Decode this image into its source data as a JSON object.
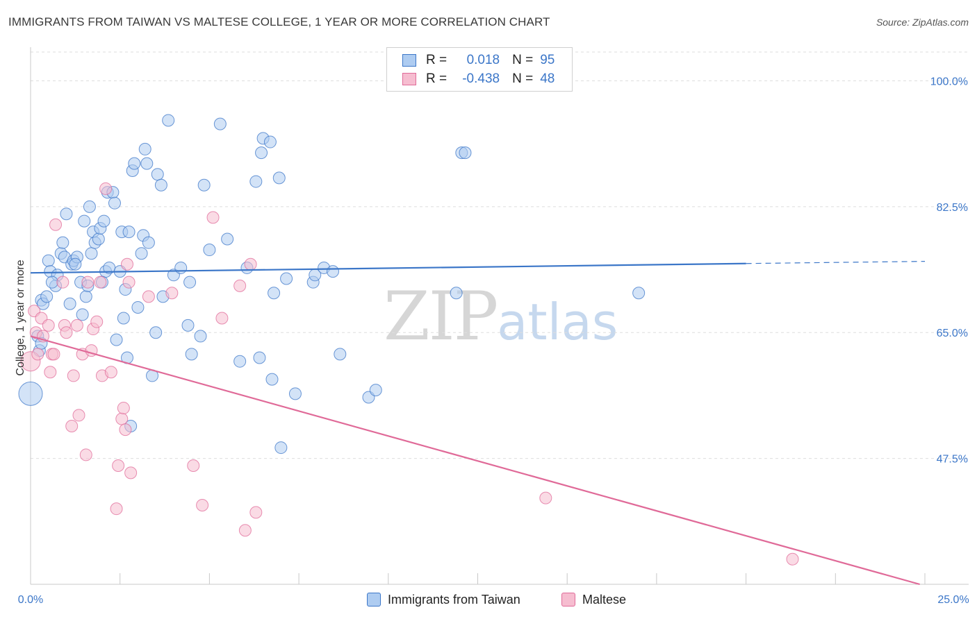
{
  "title": "IMMIGRANTS FROM TAIWAN VS MALTESE COLLEGE, 1 YEAR OR MORE CORRELATION CHART",
  "source": "Source: ZipAtlas.com",
  "watermark": {
    "zip": "ZIP",
    "atlas": "atlas"
  },
  "legend": {
    "series1": {
      "r_label": "R =",
      "r_value": "0.018",
      "n_label": "N =",
      "n_value": "95"
    },
    "series2": {
      "r_label": "R =",
      "r_value": "-0.438",
      "n_label": "N =",
      "n_value": "48"
    }
  },
  "colors": {
    "blue": "#3b76c8",
    "blue_fill": "#aeccf1",
    "pink": "#e06a98",
    "pink_fill": "#f6bdd0",
    "grid": "#dddddd"
  },
  "chart_data": {
    "type": "scatter",
    "title": "IMMIGRANTS FROM TAIWAN VS MALTESE COLLEGE, 1 YEAR OR MORE CORRELATION CHART",
    "xlabel": "",
    "ylabel": "College, 1 year or more",
    "xlim": [
      0,
      25
    ],
    "ylim": [
      30,
      104
    ],
    "x_tick_labels": [
      "0.0%",
      "25.0%"
    ],
    "y_ticks": [
      100,
      82.5,
      65,
      47.5
    ],
    "y_tick_labels": [
      "100.0%",
      "82.5%",
      "65.0%",
      "47.5%"
    ],
    "legend_position": "top-center",
    "series": [
      {
        "name": "Immigrants from Taiwan",
        "color": "#3b76c8",
        "trend": {
          "x": [
            0,
            20,
            25
          ],
          "y": [
            73.3,
            74.6,
            74.9
          ],
          "solid_until": 20
        },
        "points": [
          [
            0.0,
            56.5,
            3
          ],
          [
            0.2,
            64.5,
            1
          ],
          [
            0.25,
            62.5,
            1
          ],
          [
            0.3,
            69.5,
            1
          ],
          [
            0.35,
            69,
            1
          ],
          [
            0.45,
            70,
            1
          ],
          [
            0.5,
            75,
            1
          ],
          [
            0.55,
            73.5,
            1
          ],
          [
            0.7,
            71.5,
            1
          ],
          [
            0.75,
            73,
            1
          ],
          [
            0.85,
            76,
            1
          ],
          [
            0.9,
            77.5,
            1
          ],
          [
            0.95,
            75.5,
            1
          ],
          [
            1.0,
            81.5,
            1
          ],
          [
            1.1,
            69,
            1
          ],
          [
            1.15,
            74.5,
            1
          ],
          [
            1.2,
            75,
            1
          ],
          [
            1.3,
            75.5,
            1
          ],
          [
            1.4,
            72,
            1
          ],
          [
            1.45,
            67.5,
            1
          ],
          [
            1.5,
            80.5,
            1
          ],
          [
            1.55,
            70,
            1
          ],
          [
            1.65,
            82.5,
            1
          ],
          [
            1.7,
            76,
            1
          ],
          [
            1.75,
            79,
            1
          ],
          [
            1.8,
            77.5,
            1
          ],
          [
            1.9,
            78,
            1
          ],
          [
            1.95,
            79.5,
            1
          ],
          [
            2.05,
            80.5,
            1
          ],
          [
            2.1,
            73.5,
            1
          ],
          [
            2.15,
            84.5,
            1
          ],
          [
            2.2,
            74,
            1
          ],
          [
            2.3,
            84.5,
            1
          ],
          [
            2.35,
            83,
            1
          ],
          [
            2.4,
            64,
            1
          ],
          [
            2.5,
            73.5,
            1
          ],
          [
            2.55,
            79,
            1
          ],
          [
            2.6,
            67,
            1
          ],
          [
            2.65,
            71,
            1
          ],
          [
            2.7,
            61.5,
            1
          ],
          [
            2.75,
            79,
            1
          ],
          [
            2.8,
            52,
            1
          ],
          [
            2.85,
            87.5,
            1
          ],
          [
            2.9,
            88.5,
            1
          ],
          [
            3.0,
            68.5,
            1
          ],
          [
            3.1,
            76,
            1
          ],
          [
            3.15,
            78.5,
            1
          ],
          [
            3.2,
            90.5,
            1
          ],
          [
            3.25,
            88.5,
            1
          ],
          [
            3.3,
            77.5,
            1
          ],
          [
            3.4,
            59,
            1
          ],
          [
            3.5,
            65,
            1
          ],
          [
            3.55,
            87,
            1
          ],
          [
            3.65,
            85.5,
            1
          ],
          [
            3.7,
            70,
            1
          ],
          [
            3.85,
            94.5,
            1
          ],
          [
            4.0,
            73,
            1
          ],
          [
            4.2,
            74,
            1
          ],
          [
            4.4,
            66,
            1
          ],
          [
            4.45,
            72,
            1
          ],
          [
            4.5,
            62,
            1
          ],
          [
            4.75,
            64.5,
            1
          ],
          [
            4.85,
            85.5,
            1
          ],
          [
            5.0,
            76.5,
            1
          ],
          [
            5.3,
            94,
            1
          ],
          [
            5.5,
            78,
            1
          ],
          [
            5.85,
            61,
            1
          ],
          [
            6.05,
            74,
            1
          ],
          [
            6.3,
            86,
            1
          ],
          [
            6.4,
            61.5,
            1
          ],
          [
            6.45,
            90,
            1
          ],
          [
            6.5,
            92,
            1
          ],
          [
            6.7,
            91.5,
            1
          ],
          [
            6.75,
            58.5,
            1
          ],
          [
            6.8,
            70.5,
            1
          ],
          [
            6.95,
            86.5,
            1
          ],
          [
            7.0,
            49,
            1
          ],
          [
            7.15,
            72.5,
            1
          ],
          [
            7.4,
            56.5,
            1
          ],
          [
            7.9,
            72,
            1
          ],
          [
            7.95,
            73,
            1
          ],
          [
            8.2,
            74,
            1
          ],
          [
            8.45,
            73.5,
            1
          ],
          [
            8.65,
            62,
            1
          ],
          [
            9.45,
            56,
            1
          ],
          [
            9.65,
            57,
            1
          ],
          [
            11.9,
            70.5,
            1
          ],
          [
            12.05,
            90,
            1
          ],
          [
            12.15,
            90,
            1
          ],
          [
            17.0,
            70.5,
            1
          ],
          [
            0.3,
            63.5,
            1
          ],
          [
            1.6,
            71.5,
            1
          ],
          [
            0.6,
            72,
            1
          ],
          [
            2.0,
            72,
            1
          ],
          [
            1.25,
            74.5,
            1
          ]
        ]
      },
      {
        "name": "Maltese",
        "color": "#e06a98",
        "trend": {
          "x": [
            0,
            25
          ],
          "y": [
            64.5,
            29.8
          ]
        },
        "points": [
          [
            0.0,
            61,
            2
          ],
          [
            0.1,
            68,
            1
          ],
          [
            0.15,
            65,
            1
          ],
          [
            0.2,
            62,
            1
          ],
          [
            0.3,
            67,
            1
          ],
          [
            0.35,
            64.5,
            1
          ],
          [
            0.5,
            66,
            1
          ],
          [
            0.55,
            59.5,
            1
          ],
          [
            0.6,
            62,
            1
          ],
          [
            0.65,
            62,
            1
          ],
          [
            0.7,
            80,
            1
          ],
          [
            0.9,
            72,
            1
          ],
          [
            0.95,
            66,
            1
          ],
          [
            1.0,
            65,
            1
          ],
          [
            1.15,
            52,
            1
          ],
          [
            1.2,
            59,
            1
          ],
          [
            1.3,
            66,
            1
          ],
          [
            1.35,
            53.5,
            1
          ],
          [
            1.45,
            62,
            1
          ],
          [
            1.55,
            48,
            1
          ],
          [
            1.6,
            72,
            1
          ],
          [
            1.7,
            62.5,
            1
          ],
          [
            1.75,
            65.5,
            1
          ],
          [
            1.85,
            66.5,
            1
          ],
          [
            1.95,
            72,
            1
          ],
          [
            2.0,
            59,
            1
          ],
          [
            2.1,
            85,
            1
          ],
          [
            2.25,
            59.5,
            1
          ],
          [
            2.4,
            40.5,
            1
          ],
          [
            2.45,
            46.5,
            1
          ],
          [
            2.55,
            53,
            1
          ],
          [
            2.6,
            54.5,
            1
          ],
          [
            2.65,
            51.5,
            1
          ],
          [
            2.7,
            74.5,
            1
          ],
          [
            2.75,
            72,
            1
          ],
          [
            2.8,
            45.5,
            1
          ],
          [
            3.3,
            70,
            1
          ],
          [
            3.95,
            70.5,
            1
          ],
          [
            4.55,
            46.5,
            1
          ],
          [
            4.8,
            41,
            1
          ],
          [
            5.1,
            81,
            1
          ],
          [
            5.35,
            67,
            1
          ],
          [
            5.85,
            71.5,
            1
          ],
          [
            6.0,
            37.5,
            1
          ],
          [
            6.3,
            40,
            1
          ],
          [
            6.15,
            74.5,
            1
          ],
          [
            14.4,
            42,
            1
          ],
          [
            21.3,
            33.5,
            1
          ]
        ]
      }
    ]
  },
  "bottom_legend": {
    "series1": "Immigrants from Taiwan",
    "series2": "Maltese"
  }
}
